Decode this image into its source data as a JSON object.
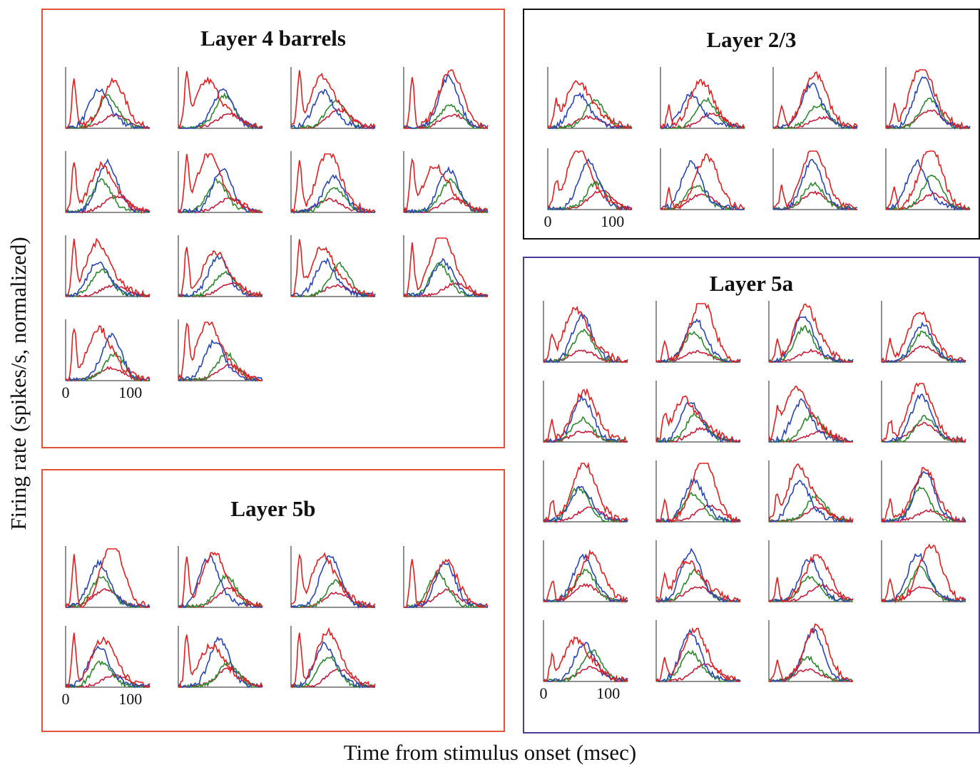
{
  "figure": {
    "y_axis_label": "Firing rate (spikes/s, normalized)",
    "x_axis_label": "Time from stimulus onset (msec)",
    "series_colors": [
      "#e02020",
      "#2846b8",
      "#2e8a2e",
      "#c81e3c"
    ],
    "panel_border_colors": {
      "layer4": "#e0533a",
      "layer23": "#111111",
      "layer5a": "#4a3a9a",
      "layer5b": "#e0533a"
    }
  },
  "chart_data": [
    {
      "type": "line",
      "title": "Layer 4 barrels",
      "xlabel": "Time from stimulus onset (msec)",
      "ylabel": "Firing rate (spikes/s, normalized)",
      "x_tick_labels": [
        "0",
        "100"
      ],
      "xlim": [
        0,
        130
      ],
      "n_neurons": 14,
      "grid": false
    },
    {
      "type": "line",
      "title": "Layer 2/3",
      "xlabel": "Time from stimulus onset (msec)",
      "ylabel": "Firing rate (spikes/s, normalized)",
      "x_tick_labels": [
        "0",
        "100"
      ],
      "xlim": [
        0,
        130
      ],
      "n_neurons": 8,
      "grid": false
    },
    {
      "type": "line",
      "title": "Layer 5a",
      "xlabel": "Time from stimulus onset (msec)",
      "ylabel": "Firing rate (spikes/s, normalized)",
      "x_tick_labels": [
        "0",
        "100"
      ],
      "xlim": [
        0,
        130
      ],
      "n_neurons": 19,
      "grid": false
    },
    {
      "type": "line",
      "title": "Layer 5b",
      "xlabel": "Time from stimulus onset (msec)",
      "ylabel": "Firing rate (spikes/s, normalized)",
      "x_tick_labels": [
        "0",
        "100"
      ],
      "xlim": [
        0,
        130
      ],
      "n_neurons": 7,
      "grid": false
    }
  ]
}
